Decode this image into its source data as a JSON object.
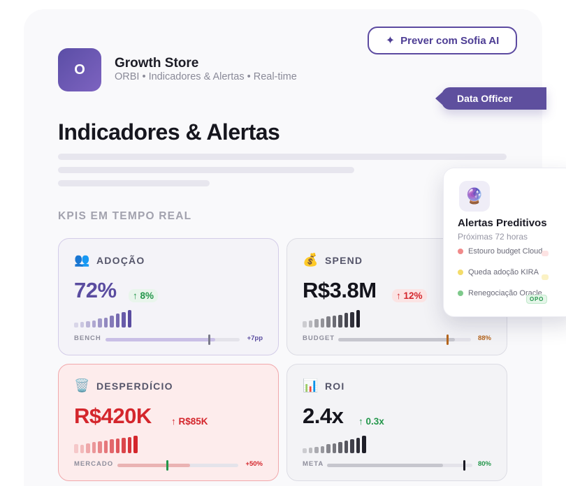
{
  "header": {
    "sofia_button": "Prever com Sofia AI",
    "logo_letter": "O",
    "store_name": "Growth Store",
    "store_subtitle": "ORBI • Indicadores & Alertas • Real-time",
    "officer_tag": "Data Officer"
  },
  "page": {
    "title": "Indicadores & Alertas",
    "section_label": "KPIS EM TEMPO REAL"
  },
  "kpis": {
    "adocao": {
      "icon": "👥",
      "label": "ADOÇÃO",
      "value": "72%",
      "delta": "↑ 8%",
      "bench_label": "BENCH",
      "bench_value": "+7pp",
      "bench_fill": 0.82,
      "bench_marker": 0.77,
      "bars": [
        0.25,
        0.3,
        0.35,
        0.4,
        0.5,
        0.55,
        0.65,
        0.75,
        0.85,
        0.95
      ],
      "color": "#5a4ca0"
    },
    "spend": {
      "icon": "💰",
      "label": "SPEND",
      "value": "R$3.8M",
      "delta": "↑ 12%",
      "bench_label": "BUDGET",
      "bench_value": "88%",
      "bench_fill": 0.88,
      "bench_marker": 0.82,
      "bars": [
        0.35,
        0.4,
        0.45,
        0.5,
        0.6,
        0.65,
        0.7,
        0.8,
        0.85,
        0.95
      ],
      "color": "#14141c"
    },
    "desperdicio": {
      "icon": "🗑️",
      "label": "DESPERDÍCIO",
      "value": "R$420K",
      "delta": "↑ R$85K",
      "bench_label": "MERCADO",
      "bench_value": "+50%",
      "bench_fill": 0.6,
      "bench_marker": 0.41,
      "bars": [
        0.5,
        0.45,
        0.55,
        0.6,
        0.65,
        0.7,
        0.75,
        0.8,
        0.85,
        0.9,
        0.95
      ],
      "color": "#d4262c"
    },
    "roi": {
      "icon": "📊",
      "label": "ROI",
      "value": "2.4x",
      "delta": "↑ 0.3x",
      "bench_label": "META",
      "bench_value": "80%",
      "bench_fill": 0.8,
      "bench_marker": 0.94,
      "bars": [
        0.25,
        0.3,
        0.35,
        0.4,
        0.5,
        0.55,
        0.6,
        0.7,
        0.75,
        0.85,
        0.95
      ],
      "color": "#14141c"
    }
  },
  "alerts": {
    "icon": "🔮",
    "title": "Alertas Preditivos",
    "subtitle": "Próximas 72 horas",
    "items": [
      {
        "text": "Estouro budget Cloud",
        "color": "#f08a8a"
      },
      {
        "text": "Queda adoção KIRA",
        "color": "#f3dc6a"
      },
      {
        "text": "Renegociação Oracle",
        "color": "#7ec98b"
      }
    ],
    "badge": "OPO"
  }
}
